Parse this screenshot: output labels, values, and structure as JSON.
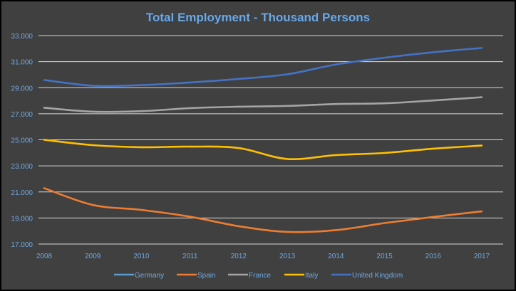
{
  "chart_data": {
    "type": "line",
    "title": "Total Employment - Thousand Persons",
    "xlabel": "",
    "ylabel": "",
    "categories": [
      "2008",
      "2009",
      "2010",
      "2011",
      "2012",
      "2013",
      "2014",
      "2015",
      "2016",
      "2017"
    ],
    "ylim": [
      17000,
      33000
    ],
    "yticks": [
      17000,
      19000,
      21000,
      23000,
      25000,
      27000,
      29000,
      31000,
      33000
    ],
    "ytick_labels": [
      "17.000",
      "19.000",
      "21.000",
      "23.000",
      "25.000",
      "27.000",
      "29.000",
      "31.000",
      "33.000"
    ],
    "grid": true,
    "smooth": true,
    "legend_position": "bottom",
    "background": "#404040",
    "series": [
      {
        "name": "Germany",
        "color": "#5B9BD5",
        "values": [
          null,
          null,
          null,
          null,
          null,
          null,
          null,
          null,
          null,
          null
        ]
      },
      {
        "name": "Spain",
        "color": "#ED7D31",
        "values": [
          21290,
          20000,
          19620,
          19100,
          18370,
          17930,
          18070,
          18610,
          19080,
          19510
        ]
      },
      {
        "name": "France",
        "color": "#A5A5A5",
        "values": [
          27460,
          27160,
          27200,
          27430,
          27540,
          27600,
          27750,
          27800,
          28020,
          28270
        ]
      },
      {
        "name": "Italy",
        "color": "#FFC000",
        "values": [
          25000,
          24590,
          24430,
          24480,
          24370,
          23530,
          23830,
          23990,
          24320,
          24560
        ]
      },
      {
        "name": "United Kingdom",
        "color": "#4472C4",
        "values": [
          29590,
          29150,
          29200,
          29400,
          29670,
          30030,
          30780,
          31300,
          31720,
          32050
        ]
      }
    ]
  }
}
